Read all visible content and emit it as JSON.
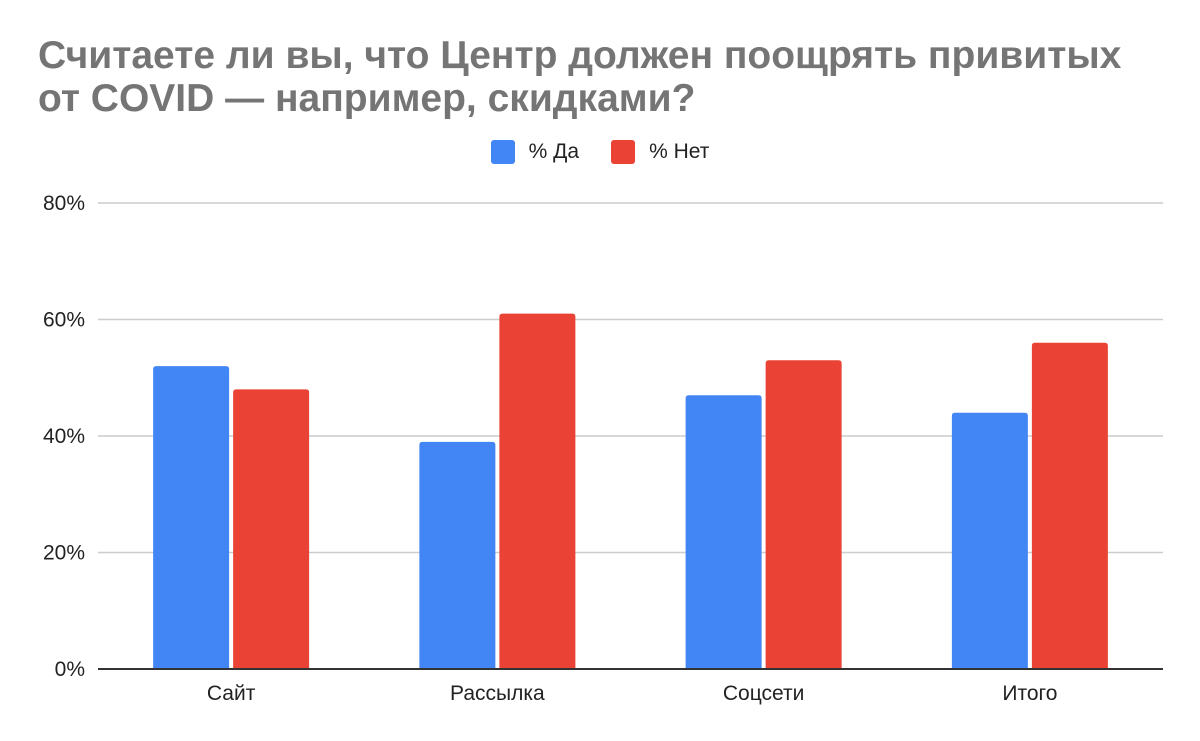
{
  "chart_data": {
    "type": "bar",
    "title": "Считаете ли вы, что Центр должен поощрять привитых\nот COVID  — например, скидками?",
    "categories": [
      "Сайт",
      "Рассылка",
      "Соцсети",
      "Итого"
    ],
    "series": [
      {
        "name": "% Да",
        "color": "#4285f4",
        "values": [
          52,
          39,
          47,
          44
        ]
      },
      {
        "name": "% Нет",
        "color": "#ea4335",
        "values": [
          48,
          61,
          53,
          56
        ]
      }
    ],
    "ylim": [
      0,
      80
    ],
    "yticks": [
      0,
      20,
      40,
      60,
      80
    ],
    "ytick_labels": [
      "0%",
      "20%",
      "40%",
      "60%",
      "80%"
    ],
    "xlabel": "",
    "ylabel": "",
    "grid": true,
    "legend_position": "top"
  }
}
